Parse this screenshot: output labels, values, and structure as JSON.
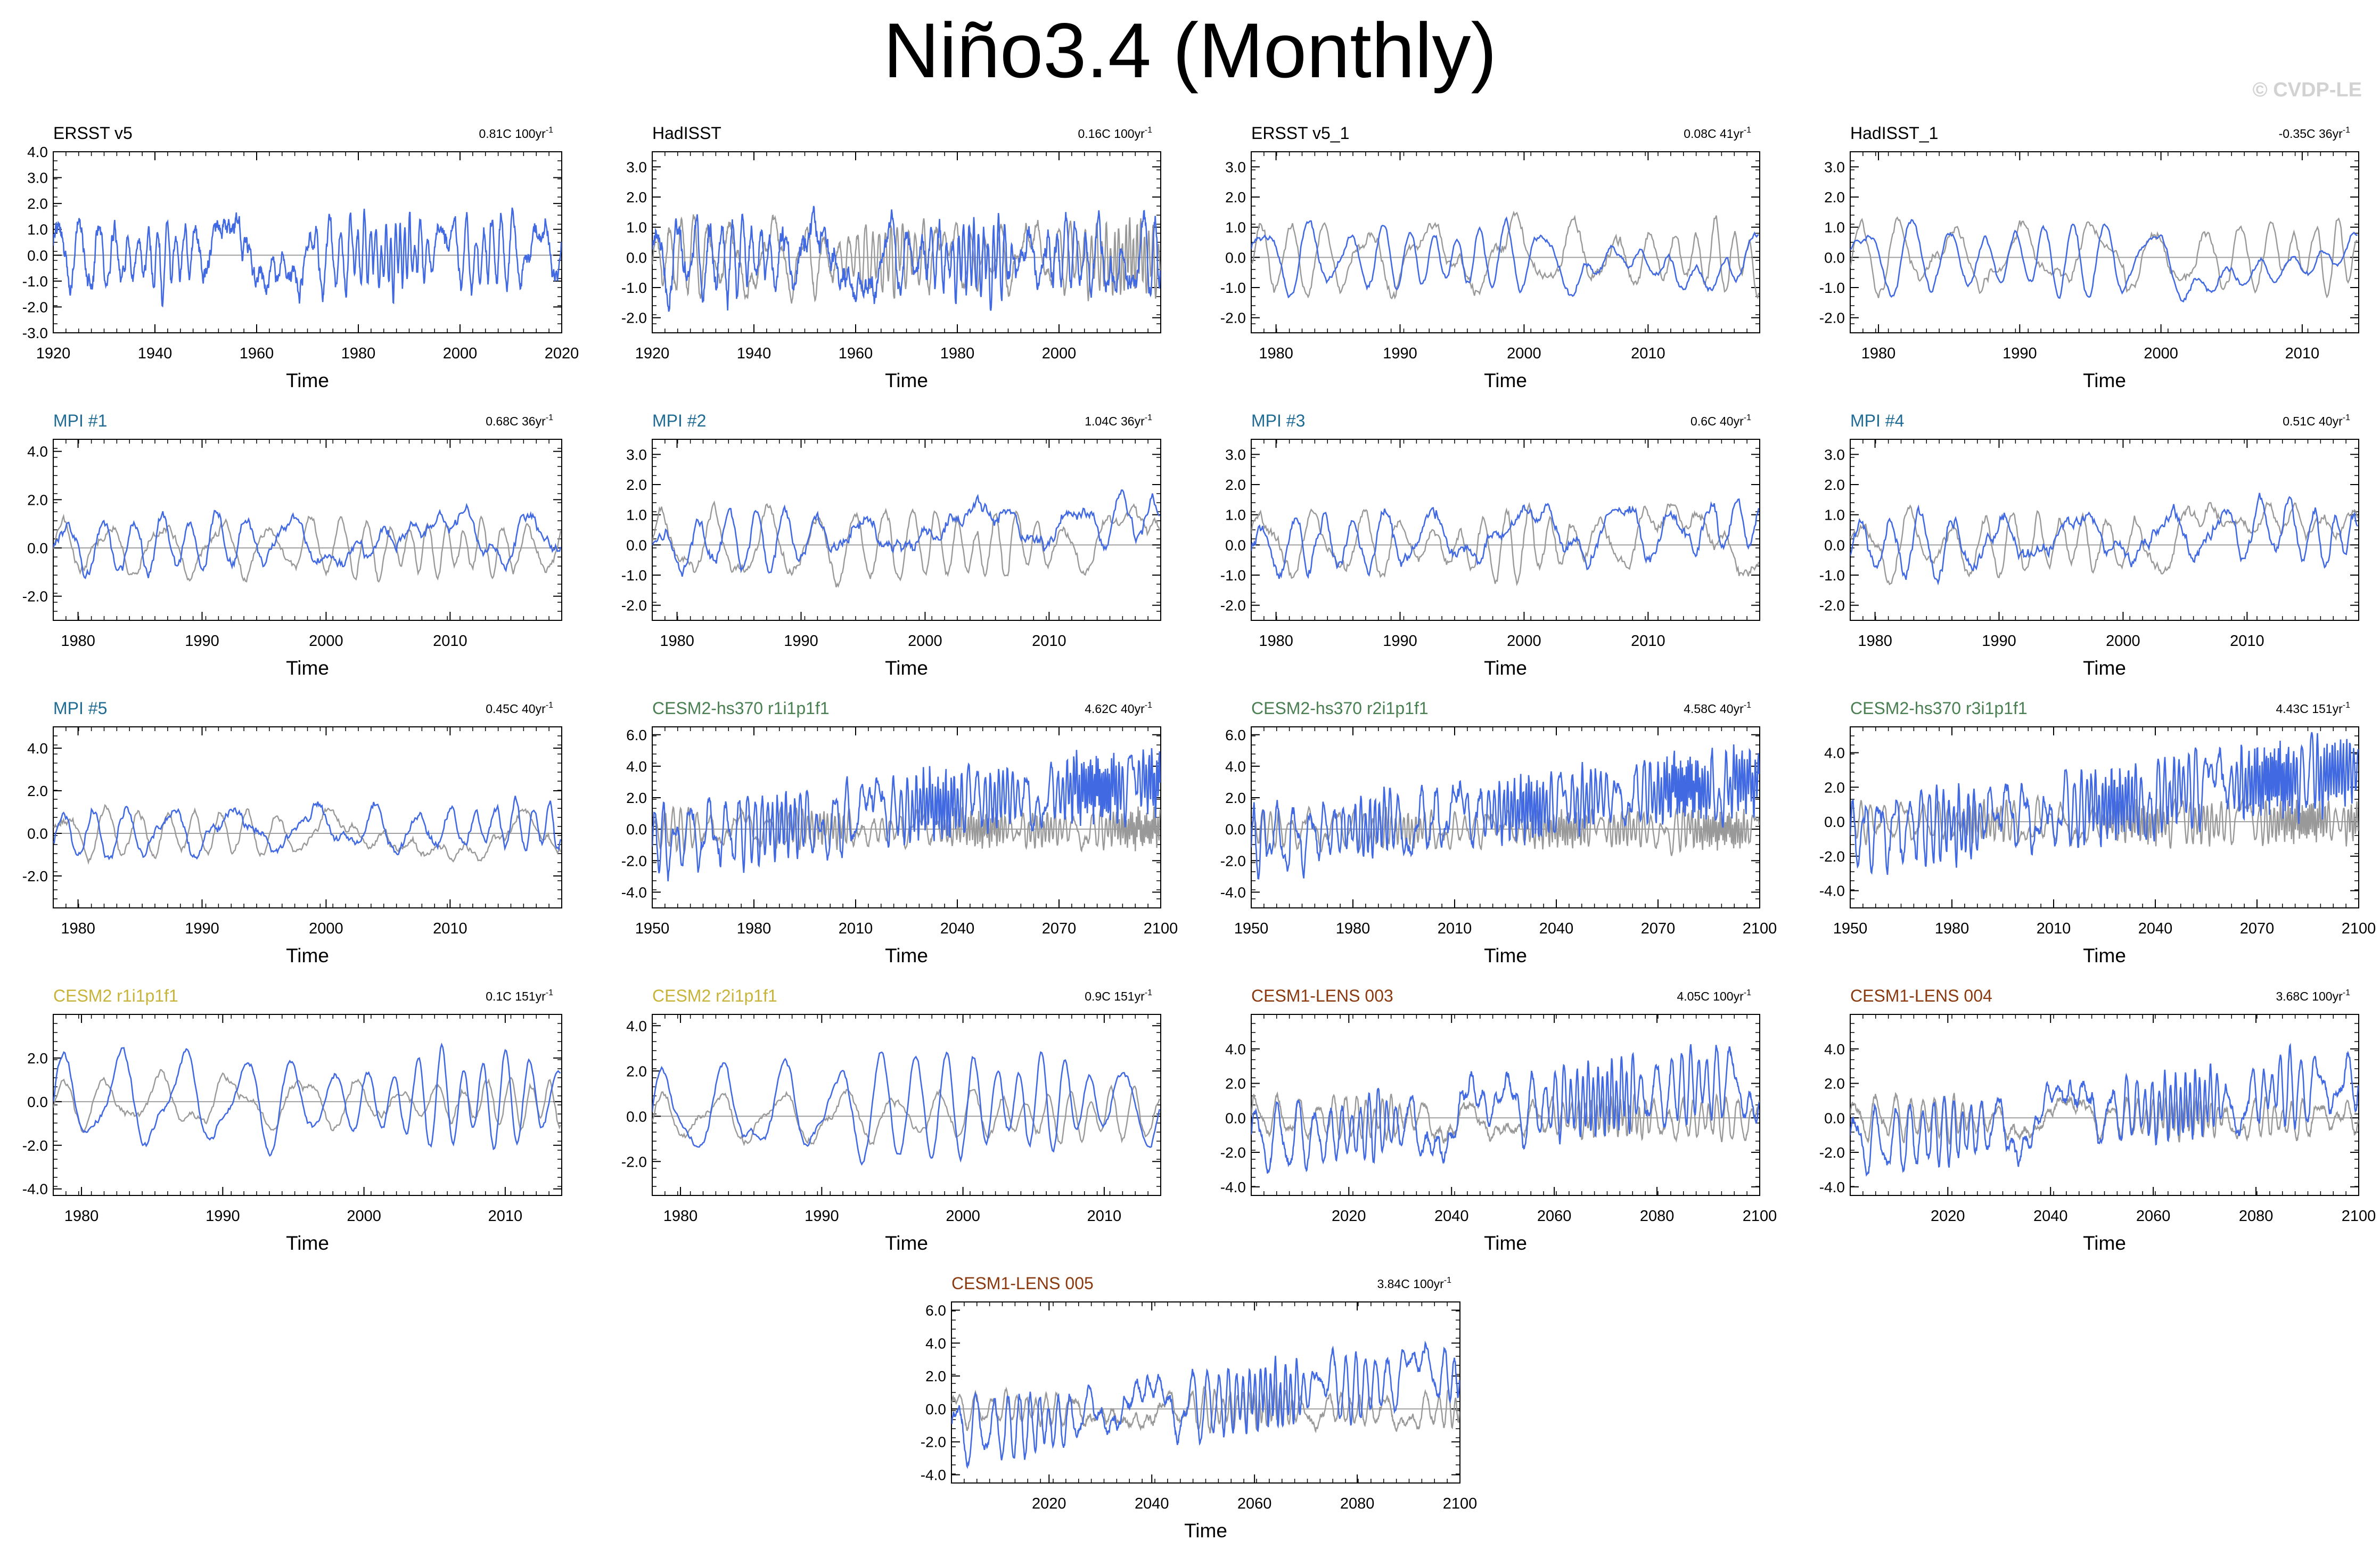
{
  "page": {
    "title": "Niño3.4 (Monthly)",
    "watermark": "© CVDP-LE",
    "colors": {
      "model": "#4169e1",
      "obs": "#999999",
      "zero_line": "#a0a0a0",
      "obs_title": "#000000",
      "mpi_title": "#1f6b94",
      "cesm2hs_title": "#4a7f52",
      "cesm2_title": "#c8b43a",
      "cesm1_title": "#8b3a0f"
    }
  },
  "chart_data": [
    {
      "type": "line",
      "title": "ERSST v5",
      "title_color": "obs",
      "trend": "0.81C 100yr",
      "xlim": [
        1920,
        2020
      ],
      "xticks": [
        1920,
        1940,
        1960,
        1980,
        2000,
        2020
      ],
      "ylim": [
        -3,
        4
      ],
      "yticks": [
        -3,
        -2,
        -1,
        0,
        1,
        2,
        3,
        4
      ],
      "ytick_labels": [
        "-3.0",
        "-2.0",
        "-1.0",
        "0.0",
        "1.0",
        "2.0",
        "3.0",
        "4.0"
      ],
      "xlabel": "Time",
      "mean": 0.0,
      "trend_total": 0.0,
      "amp": 1.0,
      "noise": 0.45,
      "has_obs": false
    },
    {
      "type": "line",
      "title": "HadISST",
      "title_color": "obs",
      "trend": "0.16C 100yr",
      "xlim": [
        1920,
        2020
      ],
      "xticks": [
        1920,
        1940,
        1960,
        1980,
        2000
      ],
      "ylim": [
        -2.5,
        3.5
      ],
      "yticks": [
        -2,
        -1,
        0,
        1,
        2,
        3
      ],
      "ytick_labels": [
        "-2.0",
        "-1.0",
        "0.0",
        "1.0",
        "2.0",
        "3.0"
      ],
      "xlabel": "Time",
      "mean": 0.0,
      "trend_total": 0.0,
      "amp": 0.9,
      "noise": 0.45,
      "has_obs": true
    },
    {
      "type": "line",
      "title": "ERSST v5_1",
      "title_color": "obs",
      "trend": "0.08C 41yr",
      "xlim": [
        1978,
        2019
      ],
      "xticks": [
        1980,
        1990,
        2000,
        2010
      ],
      "ylim": [
        -2.5,
        3.5
      ],
      "yticks": [
        -2,
        -1,
        0,
        1,
        2,
        3
      ],
      "ytick_labels": [
        "-2.0",
        "-1.0",
        "0.0",
        "1.0",
        "2.0",
        "3.0"
      ],
      "xlabel": "Time",
      "mean": 0.0,
      "trend_total": 0.0,
      "amp": 1.0,
      "noise": 0.15,
      "has_obs": true
    },
    {
      "type": "line",
      "title": "HadISST_1",
      "title_color": "obs",
      "trend": "-0.35C 36yr",
      "xlim": [
        1978,
        2014
      ],
      "xticks": [
        1980,
        1990,
        2000,
        2010
      ],
      "ylim": [
        -2.5,
        3.5
      ],
      "yticks": [
        -2,
        -1,
        0,
        1,
        2,
        3
      ],
      "ytick_labels": [
        "-2.0",
        "-1.0",
        "0.0",
        "1.0",
        "2.0",
        "3.0"
      ],
      "xlabel": "Time",
      "mean": 0.0,
      "trend_total": -0.2,
      "amp": 1.0,
      "noise": 0.15,
      "has_obs": true
    },
    {
      "type": "line",
      "title": "MPI #1",
      "title_color": "mpi",
      "trend": "0.68C 36yr",
      "xlim": [
        1978,
        2019
      ],
      "xticks": [
        1980,
        1990,
        2000,
        2010
      ],
      "ylim": [
        -3,
        4.5
      ],
      "yticks": [
        -2,
        0,
        2,
        4
      ],
      "ytick_labels": [
        "-2.0",
        "0.0",
        "2.0",
        "4.0"
      ],
      "xlabel": "Time",
      "mean": 0.0,
      "trend_total": 0.6,
      "amp": 0.9,
      "noise": 0.3,
      "has_obs": true
    },
    {
      "type": "line",
      "title": "MPI #2",
      "title_color": "mpi",
      "trend": "1.04C 36yr",
      "xlim": [
        1978,
        2019
      ],
      "xticks": [
        1980,
        1990,
        2000,
        2010
      ],
      "ylim": [
        -2.5,
        3.5
      ],
      "yticks": [
        -2,
        -1,
        0,
        1,
        2,
        3
      ],
      "ytick_labels": [
        "-2.0",
        "-1.0",
        "0.0",
        "1.0",
        "2.0",
        "3.0"
      ],
      "xlabel": "Time",
      "mean": 0.0,
      "trend_total": 0.9,
      "amp": 0.6,
      "noise": 0.3,
      "has_obs": true
    },
    {
      "type": "line",
      "title": "MPI #3",
      "title_color": "mpi",
      "trend": "0.6C 40yr",
      "xlim": [
        1978,
        2019
      ],
      "xticks": [
        1980,
        1990,
        2000,
        2010
      ],
      "ylim": [
        -2.5,
        3.5
      ],
      "yticks": [
        -2,
        -1,
        0,
        1,
        2,
        3
      ],
      "ytick_labels": [
        "-2.0",
        "-1.0",
        "0.0",
        "1.0",
        "2.0",
        "3.0"
      ],
      "xlabel": "Time",
      "mean": 0.0,
      "trend_total": 0.6,
      "amp": 0.7,
      "noise": 0.3,
      "has_obs": true
    },
    {
      "type": "line",
      "title": "MPI #4",
      "title_color": "mpi",
      "trend": "0.51C 40yr",
      "xlim": [
        1978,
        2019
      ],
      "xticks": [
        1980,
        1990,
        2000,
        2010
      ],
      "ylim": [
        -2.5,
        3.5
      ],
      "yticks": [
        -2,
        -1,
        0,
        1,
        2,
        3
      ],
      "ytick_labels": [
        "-2.0",
        "-1.0",
        "0.0",
        "1.0",
        "2.0",
        "3.0"
      ],
      "xlabel": "Time",
      "mean": 0.0,
      "trend_total": 0.5,
      "amp": 0.7,
      "noise": 0.3,
      "has_obs": true
    },
    {
      "type": "line",
      "title": "MPI #5",
      "title_color": "mpi",
      "trend": "0.45C 40yr",
      "xlim": [
        1978,
        2019
      ],
      "xticks": [
        1980,
        1990,
        2000,
        2010
      ],
      "ylim": [
        -3.5,
        5
      ],
      "yticks": [
        -2,
        0,
        2,
        4
      ],
      "ytick_labels": [
        "-2.0",
        "0.0",
        "2.0",
        "4.0"
      ],
      "xlabel": "Time",
      "mean": 0.0,
      "trend_total": 0.4,
      "amp": 0.9,
      "noise": 0.3,
      "has_obs": true
    },
    {
      "type": "line",
      "title": "CESM2-hs370 r1i1p1f1",
      "title_color": "cesm2hs",
      "trend": "4.62C 40yr",
      "xlim": [
        1950,
        2100
      ],
      "xticks": [
        1950,
        1980,
        2010,
        2040,
        2070,
        2100
      ],
      "ylim": [
        -5,
        6.5
      ],
      "yticks": [
        -4,
        -2,
        0,
        2,
        4,
        6
      ],
      "ytick_labels": [
        "-4.0",
        "-2.0",
        "0.0",
        "2.0",
        "4.0",
        "6.0"
      ],
      "xlabel": "Time",
      "mean": -0.8,
      "trend_total": 4.0,
      "amp": 1.6,
      "noise": 0.5,
      "has_obs": true
    },
    {
      "type": "line",
      "title": "CESM2-hs370 r2i1p1f1",
      "title_color": "cesm2hs",
      "trend": "4.58C 40yr",
      "xlim": [
        1950,
        2100
      ],
      "xticks": [
        1950,
        1980,
        2010,
        2040,
        2070,
        2100
      ],
      "ylim": [
        -5,
        6.5
      ],
      "yticks": [
        -4,
        -2,
        0,
        2,
        4,
        6
      ],
      "ytick_labels": [
        "-4.0",
        "-2.0",
        "0.0",
        "2.0",
        "4.0",
        "6.0"
      ],
      "xlabel": "Time",
      "mean": -0.8,
      "trend_total": 4.0,
      "amp": 1.6,
      "noise": 0.5,
      "has_obs": true
    },
    {
      "type": "line",
      "title": "CESM2-hs370 r3i1p1f1",
      "title_color": "cesm2hs",
      "trend": "4.43C 151yr",
      "xlim": [
        1950,
        2100
      ],
      "xticks": [
        1950,
        1980,
        2010,
        2040,
        2070,
        2100
      ],
      "ylim": [
        -5,
        5.5
      ],
      "yticks": [
        -4,
        -2,
        0,
        2,
        4
      ],
      "ytick_labels": [
        "-4.0",
        "-2.0",
        "0.0",
        "2.0",
        "4.0"
      ],
      "xlabel": "Time",
      "mean": -0.8,
      "trend_total": 3.8,
      "amp": 1.6,
      "noise": 0.5,
      "has_obs": true
    },
    {
      "type": "line",
      "title": "CESM2 r1i1p1f1",
      "title_color": "cesm2",
      "trend": "0.1C 151yr",
      "xlim": [
        1978,
        2014
      ],
      "xticks": [
        1980,
        1990,
        2000,
        2010
      ],
      "ylim": [
        -4.3,
        4
      ],
      "yticks": [
        -4,
        -2,
        0,
        2
      ],
      "ytick_labels": [
        "-4.0",
        "-2.0",
        "0.0",
        "2.0"
      ],
      "xlabel": "Time",
      "mean": 0.0,
      "trend_total": 0.1,
      "amp": 1.8,
      "noise": 0.2,
      "has_obs": true
    },
    {
      "type": "line",
      "title": "CESM2 r2i1p1f1",
      "title_color": "cesm2",
      "trend": "0.9C 151yr",
      "xlim": [
        1978,
        2014
      ],
      "xticks": [
        1980,
        1990,
        2000,
        2010
      ],
      "ylim": [
        -3.5,
        4.5
      ],
      "yticks": [
        -2,
        0,
        2,
        4
      ],
      "ytick_labels": [
        "-2.0",
        "0.0",
        "2.0",
        "4.0"
      ],
      "xlabel": "Time",
      "mean": 0.0,
      "trend_total": 0.8,
      "amp": 1.7,
      "noise": 0.2,
      "has_obs": true
    },
    {
      "type": "line",
      "title": "CESM1-LENS 003",
      "title_color": "cesm1",
      "trend": "4.05C 100yr",
      "xlim": [
        2001,
        2100
      ],
      "xticks": [
        2020,
        2040,
        2060,
        2080,
        2100
      ],
      "ylim": [
        -4.5,
        6
      ],
      "yticks": [
        -4,
        -2,
        0,
        2,
        4
      ],
      "ytick_labels": [
        "-4.0",
        "-2.0",
        "0.0",
        "2.0",
        "4.0"
      ],
      "xlabel": "Time",
      "mean": -1.5,
      "trend_total": 3.8,
      "amp": 1.7,
      "noise": 0.35,
      "has_obs": true
    },
    {
      "type": "line",
      "title": "CESM1-LENS 004",
      "title_color": "cesm1",
      "trend": "3.68C 100yr",
      "xlim": [
        2001,
        2100
      ],
      "xticks": [
        2020,
        2040,
        2060,
        2080,
        2100
      ],
      "ylim": [
        -4.5,
        6
      ],
      "yticks": [
        -4,
        -2,
        0,
        2,
        4
      ],
      "ytick_labels": [
        "-4.0",
        "-2.0",
        "0.0",
        "2.0",
        "4.0"
      ],
      "xlabel": "Time",
      "mean": -1.5,
      "trend_total": 3.5,
      "amp": 1.5,
      "noise": 0.35,
      "has_obs": true
    },
    {
      "type": "line",
      "title": "CESM1-LENS 005",
      "title_color": "cesm1",
      "trend": "3.84C 100yr",
      "xlim": [
        2001,
        2100
      ],
      "xticks": [
        2020,
        2040,
        2060,
        2080,
        2100
      ],
      "ylim": [
        -4.5,
        6.5
      ],
      "yticks": [
        -4,
        -2,
        0,
        2,
        4,
        6
      ],
      "ytick_labels": [
        "-4.0",
        "-2.0",
        "0.0",
        "2.0",
        "4.0",
        "6.0"
      ],
      "xlabel": "Time",
      "mean": -1.5,
      "trend_total": 3.6,
      "amp": 1.6,
      "noise": 0.35,
      "has_obs": true
    }
  ]
}
